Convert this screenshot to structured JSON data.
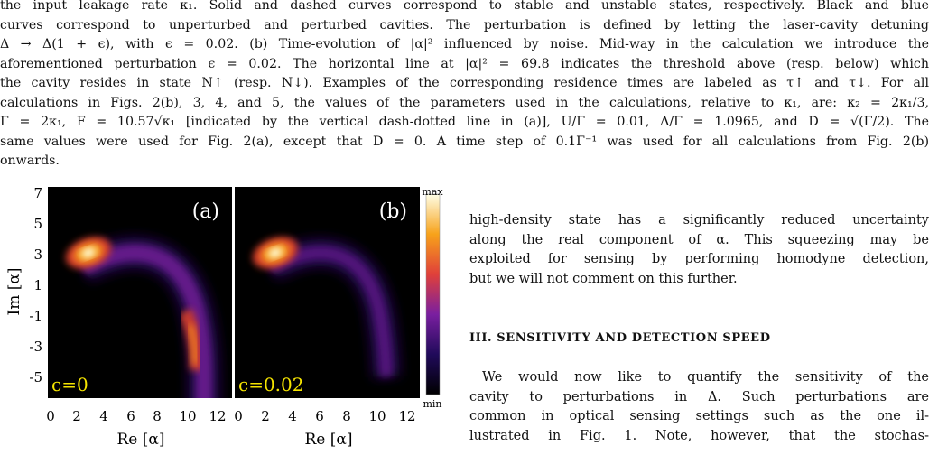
{
  "caption": {
    "lines": [
      "the input leakage rate κ₁. Solid and dashed curves correspond to stable and unstable states, respectively. Black and blue",
      "curves correspond to unperturbed and perturbed cavities. The perturbation is defined by letting the laser-cavity detuning",
      "Δ → Δ(1 + ϵ), with ϵ = 0.02. (b) Time-evolution of |α|² influenced by noise. Mid-way in the calculation we introduce the",
      "aforementioned perturbation ϵ = 0.02. The horizontal line at |α|² = 69.8 indicates the threshold above (resp. below) which",
      "the cavity resides in state N↑ (resp. N↓). Examples of the corresponding residence times are labeled as τ↑ and τ↓. For all",
      "calculations in Figs. 2(b), 3, 4, and 5, the values of the parameters used in the calculations, relative to κ₁, are: κ₂ = 2κ₁/3,",
      "Γ = 2κ₁, F = 10.57√κ₁ [indicated by the vertical dash-dotted line in (a)], U/Γ = 0.01, Δ/Γ = 1.0965, and D = √(Γ/2). The",
      "same values were used for Fig. 2(a), except that D = 0. A time step of 0.1Γ⁻¹ was used for all calculations from Fig. 2(b)",
      "onwards."
    ]
  },
  "figure": {
    "panel_a": {
      "tag": "(a)",
      "epsilon": "ϵ=0"
    },
    "panel_b": {
      "tag": "(b)",
      "epsilon": "ϵ=0.02"
    },
    "ylabel": "Im [α]",
    "xlabel": "Re [α]",
    "yticks": [
      "7",
      "5",
      "3",
      "1",
      "-1",
      "-3",
      "-5"
    ],
    "xticks_a": [
      "0",
      "2",
      "4",
      "6",
      "8",
      "10",
      "12"
    ],
    "xticks_b": [
      "0",
      "2",
      "4",
      "6",
      "8",
      "10",
      "12"
    ],
    "colorbar": {
      "max": "max",
      "min": "min"
    }
  },
  "right_column": {
    "para1": [
      "high-density state has a significantly reduced uncertainty",
      "along the real component of α. This squeezing may be",
      "exploited for sensing by performing homodyne detection,",
      "but we will not comment on this further."
    ],
    "heading": "III.   SENSITIVITY AND DETECTION SPEED",
    "para2": [
      "We would now like to quantify the sensitivity of the",
      "cavity to perturbations in Δ. Such perturbations are",
      "common in optical sensing settings such as the one il-",
      "lustrated in Fig. 1. Note, however, that the stochas-"
    ]
  }
}
